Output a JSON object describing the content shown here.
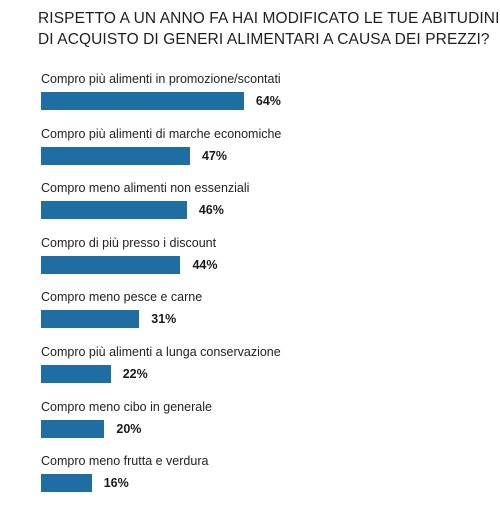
{
  "title_lines": [
    "RISPETTO A UN ANNO FA HAI MODIFICATO LE TUE ABITUDINI",
    "DI ACQUISTO DI GENERI ALIMENTARI A CAUSA DEI PREZZI?"
  ],
  "colors": {
    "bar": "#1f6ea3",
    "text": "#222222"
  },
  "chart_data": {
    "type": "bar",
    "orientation": "horizontal",
    "title": "RISPETTO A UN ANNO FA HAI MODIFICATO LE TUE ABITUDINI DI ACQUISTO DI GENERI ALIMENTARI A CAUSA DEI PREZZI?",
    "xlabel": "",
    "ylabel": "",
    "xlim": [
      0,
      100
    ],
    "grid": false,
    "categories": [
      "Compro più alimenti in promozione/scontati",
      "Compro più alimenti di marche economiche",
      "Compro meno alimenti non essenziali",
      "Compro di più presso i discount",
      "Compro meno pesce e carne",
      "Compro più alimenti a lunga conservazione",
      "Compro meno cibo in generale",
      "Compro meno frutta e verdura"
    ],
    "values": [
      64,
      47,
      46,
      44,
      31,
      22,
      20,
      16
    ],
    "value_labels": [
      "64%",
      "47%",
      "46%",
      "44%",
      "31%",
      "22%",
      "20%",
      "16%"
    ]
  }
}
